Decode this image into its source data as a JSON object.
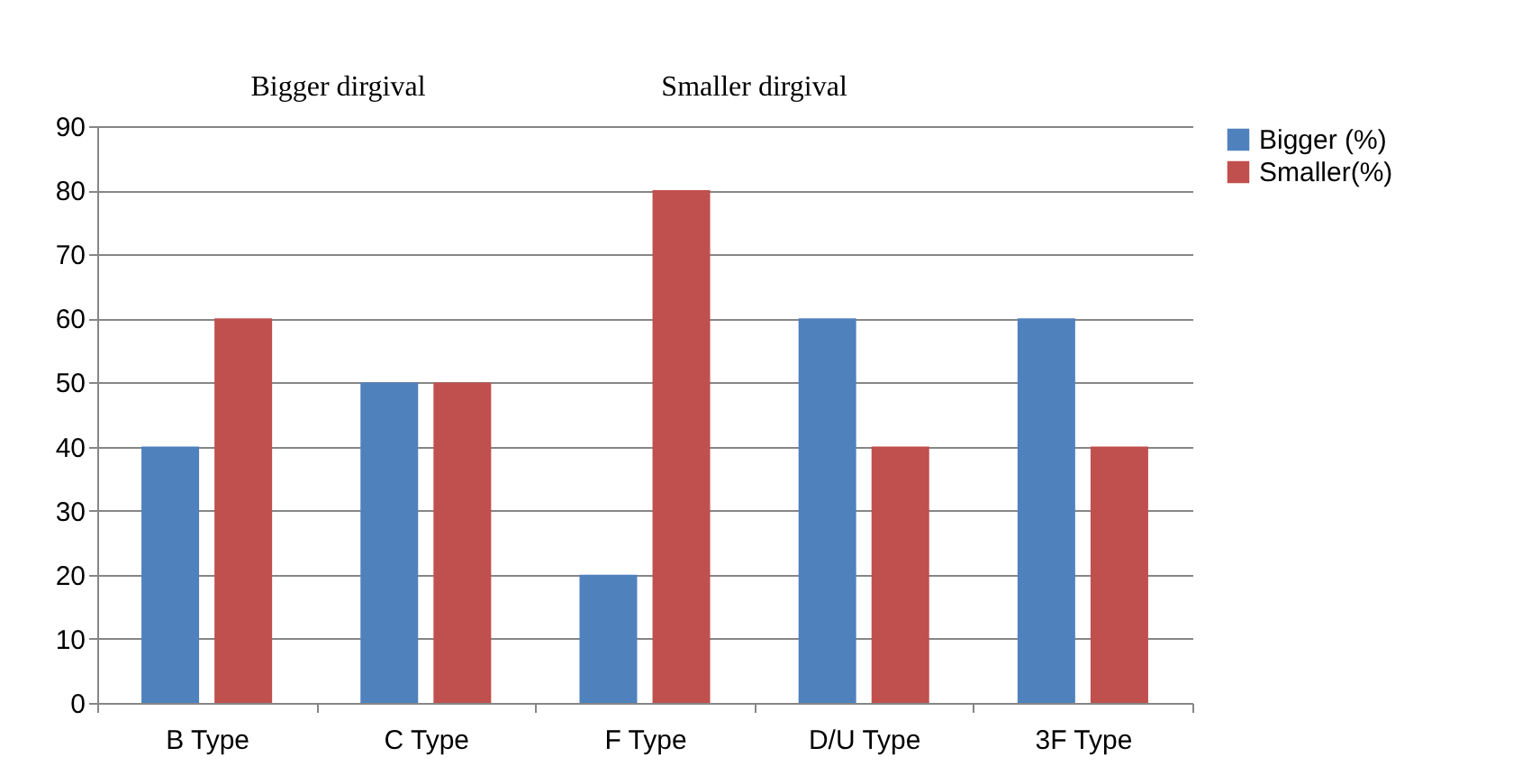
{
  "chart_data": {
    "type": "bar",
    "categories": [
      "B Type",
      "C Type",
      "F Type",
      "D/U Type",
      "3F Type"
    ],
    "series": [
      {
        "name": "Bigger (%)",
        "color": "#4f81bd",
        "values": [
          40,
          50,
          20,
          60,
          60
        ]
      },
      {
        "name": "Smaller(%)",
        "color": "#c0504d",
        "values": [
          60,
          50,
          80,
          40,
          40
        ]
      }
    ],
    "ylim": [
      0,
      90
    ],
    "yticks": [
      0,
      10,
      20,
      30,
      40,
      50,
      60,
      70,
      80,
      90
    ],
    "grid": "y",
    "legend": "right",
    "annotations": [
      "Bigger dirgival",
      "Smaller dirgival"
    ]
  }
}
